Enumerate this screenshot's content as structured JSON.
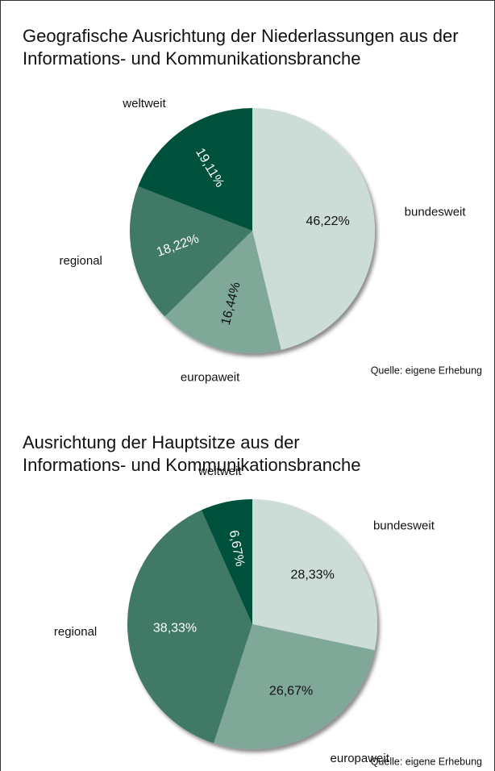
{
  "chart_data": [
    {
      "type": "pie",
      "title": [
        "Geografische Ausrichtung der Niederlassungen aus der",
        "Informations- und Kommunikationsbranche"
      ],
      "categories": [
        "bundesweit",
        "europaweit",
        "regional",
        "weltweit"
      ],
      "values": [
        46.22,
        16.44,
        18.22,
        19.11
      ],
      "value_labels": [
        "46,22%",
        "16,44%",
        "18,22%",
        "19,11%"
      ],
      "colors": [
        "#ccddd8",
        "#7fa898",
        "#3f7a66",
        "#00513a"
      ],
      "source": "Quelle: eigene Erhebung"
    },
    {
      "type": "pie",
      "title": [
        "Ausrichtung der Hauptsitze aus der",
        "Informations- und Kommunikationsbranche"
      ],
      "categories": [
        "bundesweit",
        "europaweit",
        "regional",
        "weltweit"
      ],
      "values": [
        28.33,
        26.67,
        38.33,
        6.67
      ],
      "value_labels": [
        "28,33%",
        "26,67%",
        "38,33%",
        "6,67%"
      ],
      "colors": [
        "#ccddd8",
        "#7fa898",
        "#3f7a66",
        "#00513a"
      ],
      "source": "Quelle: eigene Erhebung"
    }
  ]
}
